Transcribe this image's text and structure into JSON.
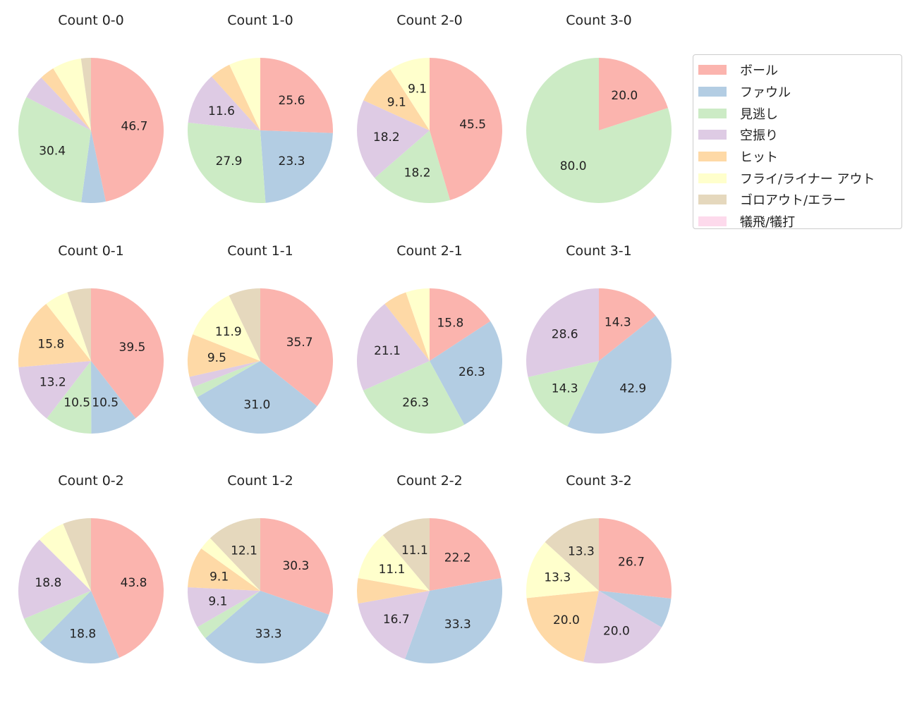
{
  "chart_data": {
    "type": "pie",
    "legend": {
      "placement": "top-right",
      "entries": [
        "ボール",
        "ファウル",
        "見逃し",
        "空振り",
        "ヒット",
        "フライ/ライナー アウト",
        "ゴロアウト/エラー",
        "犠飛/犠打"
      ]
    },
    "colors": [
      "#fbb4ae",
      "#b3cde3",
      "#ccebc5",
      "#decbe4",
      "#fed9a6",
      "#ffffcc",
      "#e5d8bd",
      "#fddaec"
    ],
    "label_threshold_percent": 8,
    "charts": [
      {
        "title": "Count 0-0",
        "values": [
          46.7,
          5.4,
          30.4,
          5.4,
          3.3,
          6.5,
          2.2,
          0
        ]
      },
      {
        "title": "Count 1-0",
        "values": [
          25.6,
          23.3,
          27.9,
          11.6,
          4.7,
          7.0,
          0,
          0
        ]
      },
      {
        "title": "Count 2-0",
        "values": [
          45.5,
          0,
          18.2,
          18.2,
          9.1,
          9.1,
          0,
          0
        ]
      },
      {
        "title": "Count 3-0",
        "values": [
          20.0,
          0,
          80.0,
          0,
          0,
          0,
          0,
          0
        ]
      },
      {
        "title": "Count 0-1",
        "values": [
          39.5,
          10.5,
          10.5,
          13.2,
          15.8,
          5.3,
          5.3,
          0
        ]
      },
      {
        "title": "Count 1-1",
        "values": [
          35.7,
          31.0,
          2.4,
          2.4,
          9.5,
          11.9,
          7.1,
          0
        ]
      },
      {
        "title": "Count 2-1",
        "values": [
          15.8,
          26.3,
          26.3,
          21.1,
          5.3,
          5.3,
          0,
          0
        ]
      },
      {
        "title": "Count 3-1",
        "values": [
          14.3,
          42.9,
          14.3,
          28.6,
          0,
          0,
          0,
          0
        ]
      },
      {
        "title": "Count 0-2",
        "values": [
          43.8,
          18.8,
          6.3,
          18.8,
          0,
          6.3,
          6.3,
          0
        ]
      },
      {
        "title": "Count 1-2",
        "values": [
          30.3,
          33.3,
          3.0,
          9.1,
          9.1,
          3.0,
          12.1,
          0
        ]
      },
      {
        "title": "Count 2-2",
        "values": [
          22.2,
          33.3,
          0,
          16.7,
          5.6,
          11.1,
          11.1,
          0
        ]
      },
      {
        "title": "Count 3-2",
        "values": [
          26.7,
          6.7,
          0,
          20.0,
          20.0,
          13.3,
          13.3,
          0
        ]
      }
    ]
  }
}
